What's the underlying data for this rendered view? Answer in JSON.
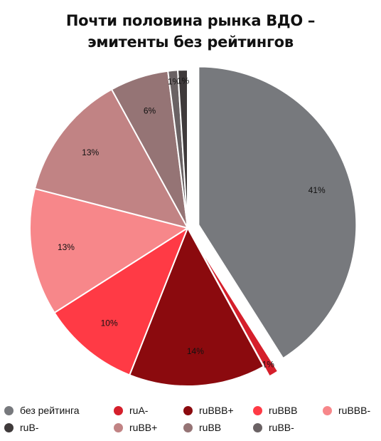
{
  "title_lines": [
    "Почти половина рынка ВДО –",
    "эмитенты без рейтингов"
  ],
  "chart_data": {
    "type": "pie",
    "title": "Почти половина рынка ВДО – эмитенты без рейтингов",
    "legend_position": "bottom",
    "slices": [
      {
        "label": "без рейтинга",
        "value": 41,
        "display": "41%",
        "color": "#77797d",
        "exploded": true
      },
      {
        "label": "ruA-",
        "value": 1,
        "display": "1%",
        "color": "#d51f2b",
        "exploded": true
      },
      {
        "label": "ruBBB+",
        "value": 14,
        "display": "14%",
        "color": "#8b0a0e",
        "exploded": false
      },
      {
        "label": "ruBBB",
        "value": 10,
        "display": "10%",
        "color": "#ff3a45",
        "exploded": false
      },
      {
        "label": "ruBBB-",
        "value": 13,
        "display": "13%",
        "color": "#f7878a",
        "exploded": false
      },
      {
        "label": "ruBB+",
        "value": 13,
        "display": "13%",
        "color": "#c18384",
        "exploded": false
      },
      {
        "label": "ruBB",
        "value": 6,
        "display": "6%",
        "color": "#957475",
        "exploded": false
      },
      {
        "label": "ruBB-",
        "value": 1,
        "display": "1%",
        "color": "#6a6264",
        "exploded": false
      },
      {
        "label": "ruB-",
        "value": 1,
        "display": "1%",
        "color": "#3f3a3b",
        "exploded": false
      }
    ]
  }
}
